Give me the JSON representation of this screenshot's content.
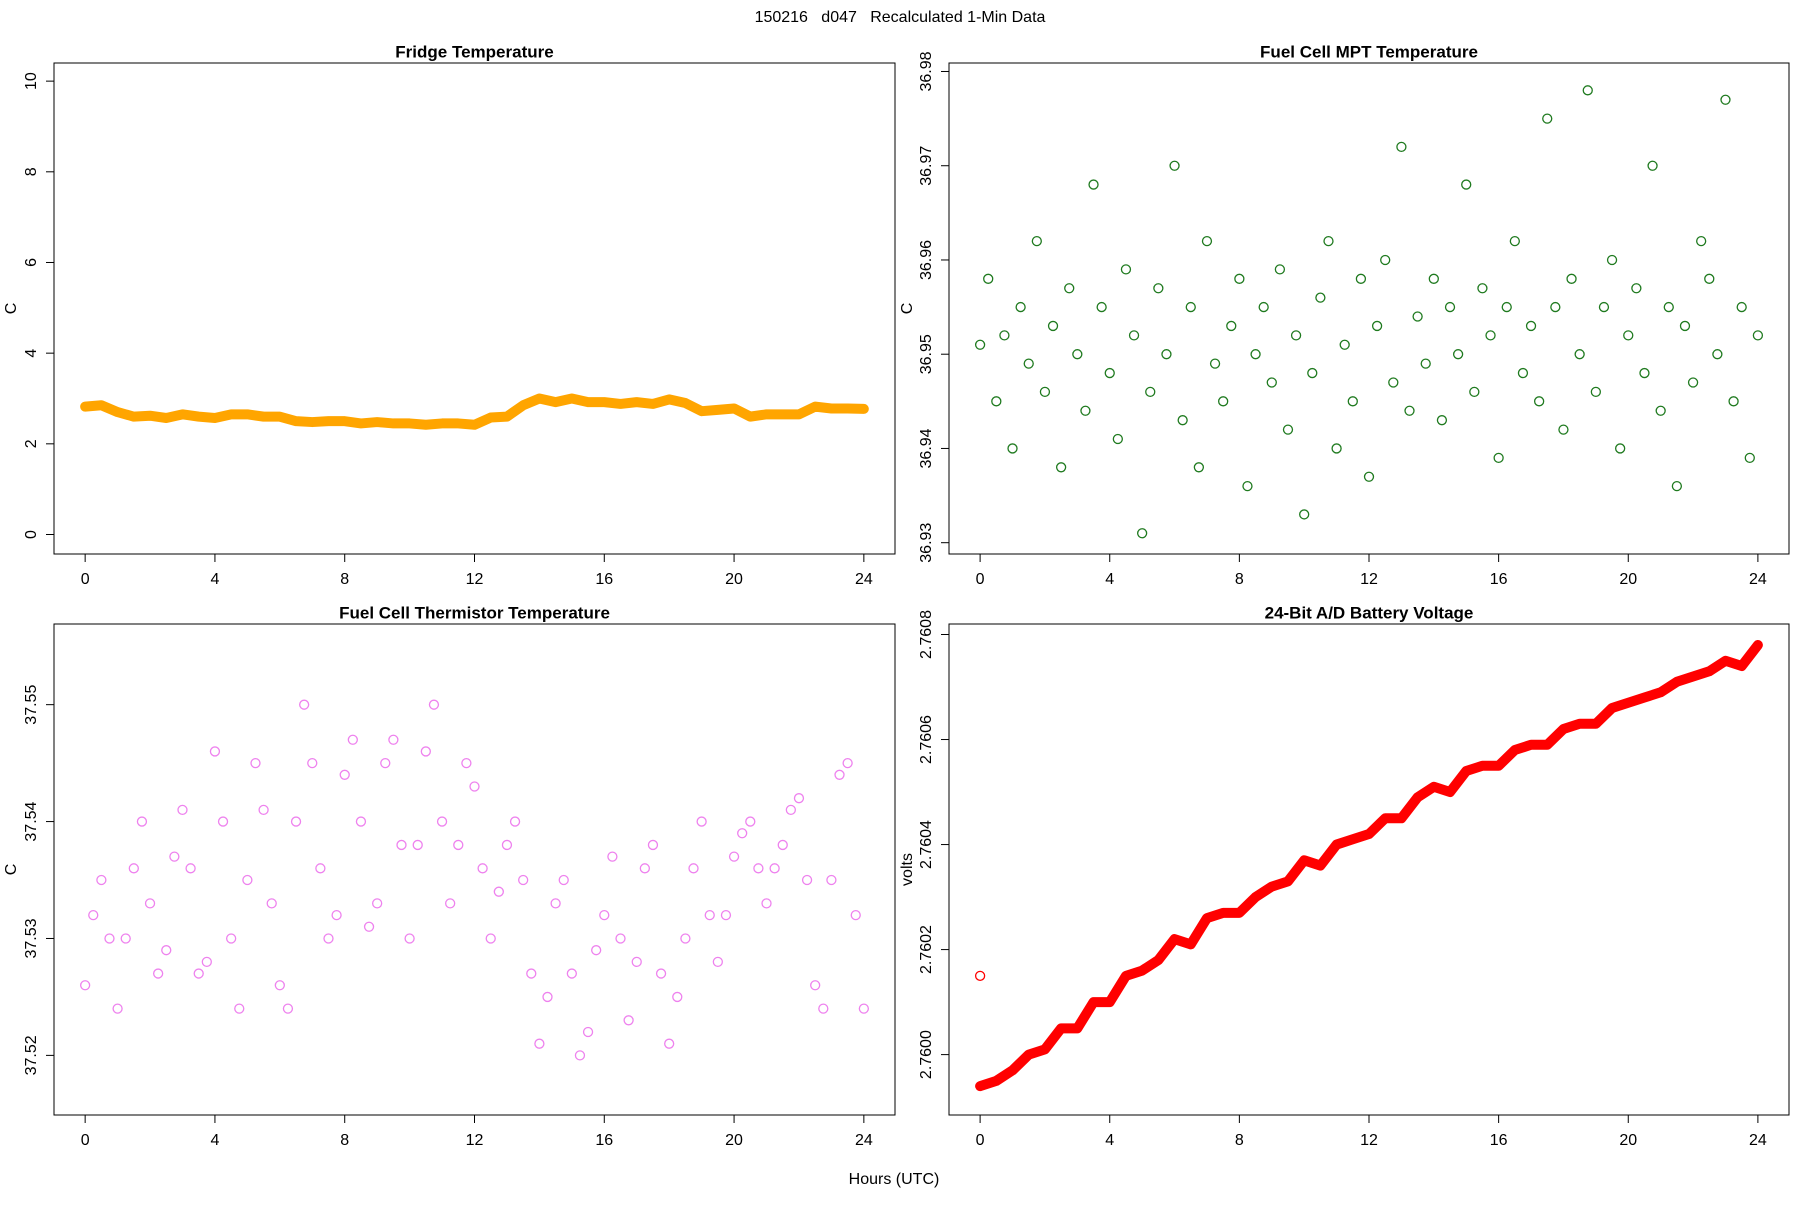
{
  "title": "150216   d047   Recalculated 1-Min Data",
  "xlabel": "Hours (UTC)",
  "chart_data": [
    {
      "type": "line",
      "title": "Fridge Temperature",
      "ylabel": "C",
      "color": "#ffa500",
      "x": [
        0,
        0.5,
        1,
        1.5,
        2,
        2.5,
        3,
        3.5,
        4,
        4.5,
        5,
        5.5,
        6,
        6.5,
        7,
        7.5,
        8,
        8.5,
        9,
        9.5,
        10,
        10.5,
        11,
        11.5,
        12,
        12.5,
        13,
        13.5,
        14,
        14.5,
        15,
        15.5,
        16,
        16.5,
        17,
        17.5,
        18,
        18.5,
        19,
        19.5,
        20,
        20.5,
        21,
        21.5,
        22,
        22.5,
        23,
        23.5,
        24
      ],
      "values": [
        2.82,
        2.85,
        2.7,
        2.6,
        2.62,
        2.57,
        2.65,
        2.6,
        2.57,
        2.65,
        2.65,
        2.6,
        2.6,
        2.5,
        2.48,
        2.5,
        2.5,
        2.45,
        2.48,
        2.45,
        2.45,
        2.42,
        2.45,
        2.45,
        2.42,
        2.58,
        2.6,
        2.85,
        3.0,
        2.92,
        3.0,
        2.92,
        2.92,
        2.88,
        2.92,
        2.88,
        2.98,
        2.9,
        2.72,
        2.75,
        2.78,
        2.6,
        2.65,
        2.65,
        2.65,
        2.82,
        2.78,
        2.78,
        2.77
      ],
      "xlim": [
        -0.96,
        24.96
      ],
      "xticks": [
        0,
        4,
        8,
        12,
        16,
        20,
        24
      ],
      "ylim": [
        -0.43,
        10.4
      ],
      "yticks": [
        0,
        2,
        4,
        6,
        8,
        10
      ]
    },
    {
      "type": "scatter",
      "title": "Fuel Cell MPT Temperature",
      "ylabel": "C",
      "color": "#1f7a1f",
      "x": [
        0,
        0.25,
        0.5,
        0.75,
        1,
        1.25,
        1.5,
        1.75,
        2,
        2.25,
        2.5,
        2.75,
        3,
        3.25,
        3.5,
        3.75,
        4,
        4.25,
        4.5,
        4.75,
        5,
        5.25,
        5.5,
        5.75,
        6,
        6.25,
        6.5,
        6.75,
        7,
        7.25,
        7.5,
        7.75,
        8,
        8.25,
        8.5,
        8.75,
        9,
        9.25,
        9.5,
        9.75,
        10,
        10.25,
        10.5,
        10.75,
        11,
        11.25,
        11.5,
        11.75,
        12,
        12.25,
        12.5,
        12.75,
        13,
        13.25,
        13.5,
        13.75,
        14,
        14.25,
        14.5,
        14.75,
        15,
        15.25,
        15.5,
        15.75,
        16,
        16.25,
        16.5,
        16.75,
        17,
        17.25,
        17.5,
        17.75,
        18,
        18.25,
        18.5,
        18.75,
        19,
        19.25,
        19.5,
        19.75,
        20,
        20.25,
        20.5,
        20.75,
        21,
        21.25,
        21.5,
        21.75,
        22,
        22.25,
        22.5,
        22.75,
        23,
        23.25,
        23.5,
        23.75,
        24
      ],
      "values": [
        36.951,
        36.958,
        36.945,
        36.952,
        36.94,
        36.955,
        36.949,
        36.962,
        36.946,
        36.953,
        36.938,
        36.957,
        36.95,
        36.944,
        36.968,
        36.955,
        36.948,
        36.941,
        36.959,
        36.952,
        36.931,
        36.946,
        36.957,
        36.95,
        36.97,
        36.943,
        36.955,
        36.938,
        36.962,
        36.949,
        36.945,
        36.953,
        36.958,
        36.936,
        36.95,
        36.955,
        36.947,
        36.959,
        36.942,
        36.952,
        36.933,
        36.948,
        36.956,
        36.962,
        36.94,
        36.951,
        36.945,
        36.958,
        36.937,
        36.953,
        36.96,
        36.947,
        36.972,
        36.944,
        36.954,
        36.949,
        36.958,
        36.943,
        36.955,
        36.95,
        36.968,
        36.946,
        36.957,
        36.952,
        36.939,
        36.955,
        36.962,
        36.948,
        36.953,
        36.945,
        36.975,
        36.955,
        36.942,
        36.958,
        36.95,
        36.978,
        36.946,
        36.955,
        36.96,
        36.94,
        36.952,
        36.957,
        36.948,
        36.97,
        36.944,
        36.955,
        36.936,
        36.953,
        36.947,
        36.962,
        36.958,
        36.95,
        36.977,
        36.945,
        36.955,
        36.939,
        36.952
      ],
      "xlim": [
        -0.96,
        24.96
      ],
      "xticks": [
        0,
        4,
        8,
        12,
        16,
        20,
        24
      ],
      "ylim": [
        36.9288,
        36.9809
      ],
      "yticks": [
        36.93,
        36.94,
        36.95,
        36.96,
        36.97,
        36.98
      ]
    },
    {
      "type": "scatter",
      "title": "Fuel Cell Thermistor Temperature",
      "ylabel": "C",
      "color": "#ee82ee",
      "x": [
        0,
        0.25,
        0.5,
        0.75,
        1,
        1.25,
        1.5,
        1.75,
        2,
        2.25,
        2.5,
        2.75,
        3,
        3.25,
        3.5,
        3.75,
        4,
        4.25,
        4.5,
        4.75,
        5,
        5.25,
        5.5,
        5.75,
        6,
        6.25,
        6.5,
        6.75,
        7,
        7.25,
        7.5,
        7.75,
        8,
        8.25,
        8.5,
        8.75,
        9,
        9.25,
        9.5,
        9.75,
        10,
        10.25,
        10.5,
        10.75,
        11,
        11.25,
        11.5,
        11.75,
        12,
        12.25,
        12.5,
        12.75,
        13,
        13.25,
        13.5,
        13.75,
        14,
        14.25,
        14.5,
        14.75,
        15,
        15.25,
        15.5,
        15.75,
        16,
        16.25,
        16.5,
        16.75,
        17,
        17.25,
        17.5,
        17.75,
        18,
        18.25,
        18.5,
        18.75,
        19,
        19.25,
        19.5,
        19.75,
        20,
        20.25,
        20.5,
        20.75,
        21,
        21.25,
        21.5,
        21.75,
        22,
        22.25,
        22.5,
        22.75,
        23,
        23.25,
        23.5,
        23.75,
        24
      ],
      "values": [
        37.526,
        37.532,
        37.535,
        37.53,
        37.524,
        37.53,
        37.536,
        37.54,
        37.533,
        37.527,
        37.529,
        37.537,
        37.541,
        37.536,
        37.527,
        37.528,
        37.546,
        37.54,
        37.53,
        37.524,
        37.535,
        37.545,
        37.541,
        37.533,
        37.526,
        37.524,
        37.54,
        37.55,
        37.545,
        37.536,
        37.53,
        37.532,
        37.544,
        37.547,
        37.54,
        37.531,
        37.533,
        37.545,
        37.547,
        37.538,
        37.53,
        37.538,
        37.546,
        37.55,
        37.54,
        37.533,
        37.538,
        37.545,
        37.543,
        37.536,
        37.53,
        37.534,
        37.538,
        37.54,
        37.535,
        37.527,
        37.521,
        37.525,
        37.533,
        37.535,
        37.527,
        37.52,
        37.522,
        37.529,
        37.532,
        37.537,
        37.53,
        37.523,
        37.528,
        37.536,
        37.538,
        37.527,
        37.521,
        37.525,
        37.53,
        37.536,
        37.54,
        37.532,
        37.528,
        37.532,
        37.537,
        37.539,
        37.54,
        37.536,
        37.533,
        37.536,
        37.538,
        37.541,
        37.542,
        37.535,
        37.526,
        37.524,
        37.535,
        37.544,
        37.545,
        37.532,
        37.524
      ],
      "xlim": [
        -0.96,
        24.96
      ],
      "xticks": [
        0,
        4,
        8,
        12,
        16,
        20,
        24
      ],
      "ylim": [
        37.5149,
        37.5569
      ],
      "yticks": [
        37.52,
        37.53,
        37.54,
        37.55
      ]
    },
    {
      "type": "line",
      "title": "24-Bit A/D Battery Voltage",
      "ylabel": "volts",
      "color": "#ff0000",
      "x": [
        0,
        0.5,
        1,
        1.5,
        2,
        2.5,
        3,
        3.5,
        4,
        4.5,
        5,
        5.5,
        6,
        6.5,
        7,
        7.5,
        8,
        8.5,
        9,
        9.5,
        10,
        10.5,
        11,
        11.5,
        12,
        12.5,
        13,
        13.5,
        14,
        14.5,
        15,
        15.5,
        16,
        16.5,
        17,
        17.5,
        18,
        18.5,
        19,
        19.5,
        20,
        20.5,
        21,
        21.5,
        22,
        22.5,
        23,
        23.5,
        24
      ],
      "values": [
        2.75994,
        2.75995,
        2.75997,
        2.76,
        2.76001,
        2.76005,
        2.76005,
        2.7601,
        2.7601,
        2.76015,
        2.76016,
        2.76018,
        2.76022,
        2.76021,
        2.76026,
        2.76027,
        2.76027,
        2.7603,
        2.76032,
        2.76033,
        2.76037,
        2.76036,
        2.7604,
        2.76041,
        2.76042,
        2.76045,
        2.76045,
        2.76049,
        2.76051,
        2.7605,
        2.76054,
        2.76055,
        2.76055,
        2.76058,
        2.76059,
        2.76059,
        2.76062,
        2.76063,
        2.76063,
        2.76066,
        2.76067,
        2.76068,
        2.76069,
        2.76071,
        2.76072,
        2.76073,
        2.76075,
        2.76074,
        2.76078
      ],
      "outliers": {
        "x": [
          0
        ],
        "values": [
          2.76015
        ]
      },
      "xlim": [
        -0.96,
        24.96
      ],
      "xticks": [
        0,
        4,
        8,
        12,
        16,
        20,
        24
      ],
      "ylim": [
        2.759885,
        2.76082
      ],
      "yticks": [
        {
          "value": 2.76,
          "label": "2.7600"
        },
        2.7602,
        2.7604,
        2.7606,
        2.7608
      ]
    }
  ]
}
